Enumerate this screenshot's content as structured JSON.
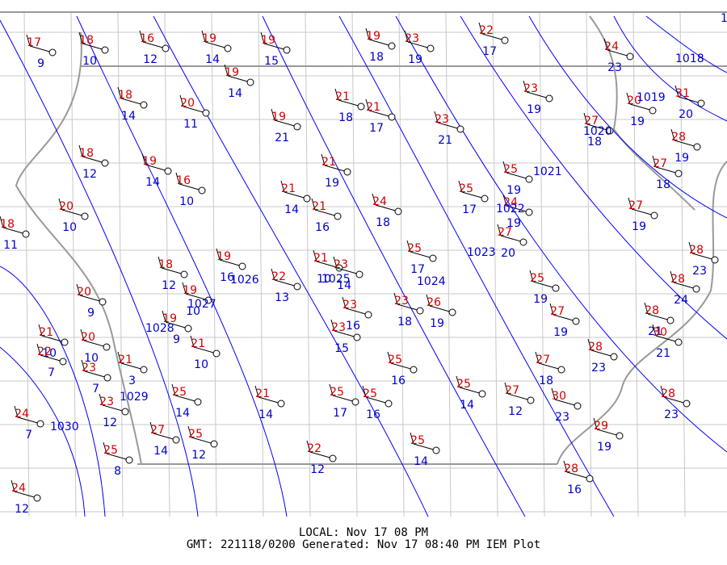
{
  "footer": {
    "local": "LOCAL: Nov 17 08 PM",
    "generated": "GMT: 221118/0200 Generated: Nov 17 08:40 PM IEM Plot"
  },
  "isobar_labels": [
    "1",
    "1018",
    "1019",
    "1020",
    "1021",
    "1022",
    "1023",
    "1024",
    "1025",
    "1026",
    "1027",
    "1028",
    "1029",
    "1030"
  ],
  "stations": [
    {
      "temp": 17,
      "dew": 9
    },
    {
      "temp": 18,
      "dew": 10
    },
    {
      "temp": 16,
      "dew": 12
    },
    {
      "temp": 19,
      "dew": 14
    },
    {
      "temp": 19,
      "dew": 15
    },
    {
      "temp": 19,
      "dew": 18
    },
    {
      "temp": 23,
      "dew": 19
    },
    {
      "temp": 22,
      "dew": 17
    },
    {
      "temp": 24,
      "dew": 23
    },
    {
      "temp": 19,
      "dew": 14
    },
    {
      "temp": 18,
      "dew": 14
    },
    {
      "temp": 20,
      "dew": 11
    },
    {
      "temp": 19,
      "dew": 21
    },
    {
      "temp": 21,
      "dew": 18
    },
    {
      "temp": 21,
      "dew": 17
    },
    {
      "temp": 23,
      "dew": 21
    },
    {
      "temp": 23,
      "dew": 19
    },
    {
      "temp": 20,
      "dew": 19
    },
    {
      "temp": 31,
      "dew": 20
    },
    {
      "temp": 27,
      "dew": 18
    },
    {
      "temp": 28,
      "dew": 19
    },
    {
      "temp": 18,
      "dew": 12
    },
    {
      "temp": 19,
      "dew": 14
    },
    {
      "temp": 16,
      "dew": 10
    },
    {
      "temp": 21,
      "dew": 19
    },
    {
      "temp": 27,
      "dew": 18
    },
    {
      "temp": 25,
      "dew": 19
    },
    {
      "temp": 21,
      "dew": 14
    },
    {
      "temp": 21,
      "dew": 16
    },
    {
      "temp": 24,
      "dew": 18
    },
    {
      "temp": 25,
      "dew": 17
    },
    {
      "temp": 24,
      "dew": 19
    },
    {
      "temp": 20,
      "dew": 10
    },
    {
      "temp": 18,
      "dew": 11
    },
    {
      "temp": 27,
      "dew": 19
    },
    {
      "temp": 27,
      "dew": 20
    },
    {
      "temp": 25,
      "dew": 17
    },
    {
      "temp": 28,
      "dew": 23
    },
    {
      "temp": 19,
      "dew": 16
    },
    {
      "temp": 21,
      "dew": 10
    },
    {
      "temp": 23,
      "dew": 14
    },
    {
      "temp": 18,
      "dew": 12
    },
    {
      "temp": 22,
      "dew": 13
    },
    {
      "temp": 25,
      "dew": 19
    },
    {
      "temp": 28,
      "dew": 24
    },
    {
      "temp": 20,
      "dew": 9
    },
    {
      "temp": 19,
      "dew": 10
    },
    {
      "temp": 23,
      "dew": 16
    },
    {
      "temp": 23,
      "dew": 18
    },
    {
      "temp": 26,
      "dew": 19
    },
    {
      "temp": 27,
      "dew": 19
    },
    {
      "temp": 28,
      "dew": 21
    },
    {
      "temp": 30,
      "dew": 21
    },
    {
      "temp": 19,
      "dew": 9
    },
    {
      "temp": 23,
      "dew": 15
    },
    {
      "temp": 21,
      "dew": 10
    },
    {
      "temp": 22,
      "dew": 7
    },
    {
      "temp": 20,
      "dew": 10
    },
    {
      "temp": 23,
      "dew": 7
    },
    {
      "temp": 21,
      "dew": 3
    },
    {
      "temp": 21,
      "dew": 10
    },
    {
      "temp": 25,
      "dew": 16
    },
    {
      "temp": 27,
      "dew": 18
    },
    {
      "temp": 28,
      "dew": 23
    },
    {
      "temp": 23,
      "dew": 12
    },
    {
      "temp": 25,
      "dew": 14
    },
    {
      "temp": 21,
      "dew": 14
    },
    {
      "temp": 25,
      "dew": 17
    },
    {
      "temp": 25,
      "dew": 16
    },
    {
      "temp": 25,
      "dew": 14
    },
    {
      "temp": 27,
      "dew": 12
    },
    {
      "temp": 30,
      "dew": 23
    },
    {
      "temp": 28,
      "dew": 23
    },
    {
      "temp": 24,
      "dew": 7
    },
    {
      "temp": 25,
      "dew": 8
    },
    {
      "temp": 27,
      "dew": 14
    },
    {
      "temp": 25,
      "dew": 12
    },
    {
      "temp": 29,
      "dew": 19
    },
    {
      "temp": 22,
      "dew": 12
    },
    {
      "temp": 25,
      "dew": 14
    },
    {
      "temp": 28,
      "dew": 16
    },
    {
      "temp": 24,
      "dew": 12
    }
  ]
}
